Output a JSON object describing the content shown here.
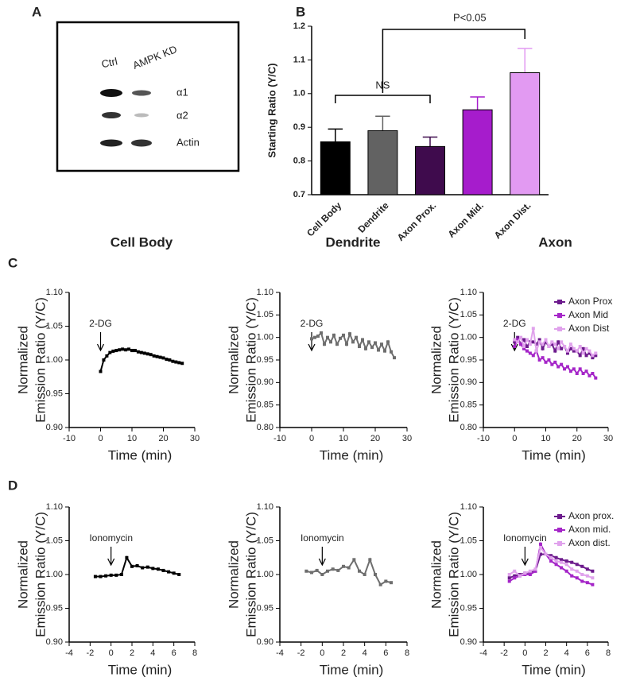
{
  "blot": {
    "panel": "A",
    "lanes": [
      "Ctrl",
      "AMPK KD"
    ],
    "bands": [
      "α1",
      "α2",
      "Actin"
    ]
  },
  "chart_data": [
    {
      "type": "bar",
      "panel": "B",
      "ylabel": "Starting Ratio (Y/C)",
      "categories": [
        "Cell Body",
        "Dendrite",
        "Axon Prox.",
        "Axon Mid.",
        "Axon Dist."
      ],
      "values": [
        0.857,
        0.89,
        0.843,
        0.952,
        1.062
      ],
      "errors": [
        0.038,
        0.043,
        0.028,
        0.038,
        0.072
      ],
      "colors": [
        "#000000",
        "#626262",
        "#3f0b4d",
        "#a61ccc",
        "#e29af2"
      ],
      "ylim": [
        0.7,
        1.2
      ],
      "yticks": [
        0.7,
        0.8,
        0.9,
        {
          "value": 1,
          "label": "1.0"
        },
        1.1,
        1.2
      ],
      "annotations": [
        "NS",
        "P<0.05"
      ]
    },
    {
      "type": "line",
      "panel": "C",
      "title": "Cell Body",
      "ylabel": [
        "Normalized",
        "Emission Ratio (Y/C)"
      ],
      "xlabel": "Time (min)",
      "annotation": {
        "text": "2-DG",
        "x": 0
      },
      "xlim": [
        -10,
        30
      ],
      "xticks": [
        -10,
        0,
        10,
        20,
        30
      ],
      "ylim": [
        0.9,
        1.1
      ],
      "yticks": [
        {
          "value": 0.9,
          "label": "0.90"
        },
        0.95,
        {
          "value": 1,
          "label": "1.00"
        },
        1.05,
        {
          "value": 1.1,
          "label": "1.10"
        }
      ],
      "x": [
        0,
        1,
        2,
        3,
        4,
        5,
        6,
        7,
        8,
        9,
        10,
        11,
        12,
        13,
        14,
        15,
        16,
        17,
        18,
        19,
        20,
        21,
        22,
        23,
        24,
        25,
        26
      ],
      "series": [
        {
          "color": "#000000",
          "values": [
            0.983,
            1.0,
            1.006,
            1.011,
            1.013,
            1.014,
            1.015,
            1.016,
            1.015,
            1.016,
            1.014,
            1.014,
            1.012,
            1.011,
            1.01,
            1.009,
            1.008,
            1.006,
            1.005,
            1.004,
            1.003,
            1.001,
            1.0,
            0.998,
            0.997,
            0.996,
            0.995
          ]
        }
      ]
    },
    {
      "type": "line",
      "title": "Dendrite",
      "ylabel": [
        "Normalized",
        "Emission Ratio (Y/C)"
      ],
      "xlabel": "Time (min)",
      "annotation": {
        "text": "2-DG",
        "x": 0
      },
      "xlim": [
        -10,
        30
      ],
      "xticks": [
        -10,
        0,
        10,
        20,
        30
      ],
      "ylim": [
        0.8,
        1.1
      ],
      "yticks": [
        {
          "value": 0.8,
          "label": "0.80"
        },
        0.85,
        {
          "value": 0.9,
          "label": "0.90"
        },
        0.95,
        {
          "value": 1,
          "label": "1.00"
        },
        1.05,
        {
          "value": 1.1,
          "label": "1.10"
        }
      ],
      "x": [
        0,
        1,
        2,
        3,
        4,
        5,
        6,
        7,
        8,
        9,
        10,
        11,
        12,
        13,
        14,
        15,
        16,
        17,
        18,
        19,
        20,
        21,
        22,
        23,
        24,
        25,
        26
      ],
      "series": [
        {
          "color": "#6e6e6e",
          "values": [
            0.997,
            1.0,
            1.003,
            1.01,
            0.985,
            1.0,
            0.99,
            1.005,
            0.985,
            0.998,
            1.005,
            0.985,
            1.008,
            0.99,
            1.0,
            0.98,
            0.995,
            0.975,
            0.99,
            0.978,
            0.988,
            0.972,
            0.985,
            0.97,
            0.99,
            0.968,
            0.955
          ]
        }
      ]
    },
    {
      "type": "line",
      "title": "Axon",
      "ylabel": [
        "Normalized",
        "Emission Ratio (Y/C)"
      ],
      "xlabel": "Time (min)",
      "annotation": {
        "text": "2-DG",
        "x": 0
      },
      "legend": "upper right",
      "xlim": [
        -10,
        30
      ],
      "xticks": [
        -10,
        0,
        10,
        20,
        30
      ],
      "ylim": [
        0.8,
        1.1
      ],
      "yticks": [
        {
          "value": 0.8,
          "label": "0.80"
        },
        0.85,
        {
          "value": 0.9,
          "label": "0.90"
        },
        0.95,
        {
          "value": 1,
          "label": "1.00"
        },
        1.05,
        {
          "value": 1.1,
          "label": "1.10"
        }
      ],
      "x": [
        0,
        1,
        2,
        3,
        4,
        5,
        6,
        7,
        8,
        9,
        10,
        11,
        12,
        13,
        14,
        15,
        16,
        17,
        18,
        19,
        20,
        21,
        22,
        23,
        24,
        25,
        26
      ],
      "series": [
        {
          "name": "Axon Prox",
          "color": "#6c1a8c",
          "values": [
            0.99,
            1.0,
            0.985,
            0.995,
            0.98,
            0.99,
            0.99,
            0.985,
            0.995,
            0.975,
            0.99,
            0.98,
            0.985,
            0.97,
            0.99,
            0.975,
            0.98,
            0.965,
            0.975,
            0.97,
            0.97,
            0.96,
            0.975,
            0.96,
            0.965,
            0.955,
            0.96
          ]
        },
        {
          "name": "Axon Mid",
          "color": "#a526c8",
          "values": [
            0.98,
            0.995,
            0.985,
            0.975,
            0.97,
            0.965,
            0.96,
            0.97,
            0.95,
            0.955,
            0.945,
            0.95,
            0.94,
            0.945,
            0.935,
            0.94,
            0.93,
            0.935,
            0.925,
            0.93,
            0.92,
            0.93,
            0.92,
            0.925,
            0.915,
            0.92,
            0.91
          ]
        },
        {
          "name": "Axon Dist",
          "color": "#e0a2ec",
          "values": [
            0.995,
            0.99,
            1.0,
            0.98,
            0.995,
            0.985,
            1.02,
            0.97,
            0.99,
            0.985,
            0.995,
            0.98,
            0.99,
            0.985,
            0.975,
            0.99,
            0.98,
            0.97,
            0.985,
            0.975,
            0.97,
            0.98,
            0.965,
            0.975,
            0.97,
            0.96,
            0.965
          ]
        }
      ]
    },
    {
      "type": "line",
      "panel": "D",
      "ylabel": [
        "Normalized",
        "Emission Ratio (Y/C)"
      ],
      "xlabel": "Time (min)",
      "annotation": {
        "text": "Ionomycin",
        "x": 0
      },
      "xlim": [
        -4,
        8
      ],
      "xticks": [
        -4,
        -2,
        0,
        2,
        4,
        6,
        8
      ],
      "ylim": [
        0.9,
        1.1
      ],
      "yticks": [
        {
          "value": 0.9,
          "label": "0.90"
        },
        0.95,
        {
          "value": 1,
          "label": "1.00"
        },
        1.05,
        {
          "value": 1.1,
          "label": "1.10"
        }
      ],
      "x": [
        -1.5,
        -1,
        -0.5,
        0,
        0.5,
        1,
        1.5,
        2,
        2.5,
        3,
        3.5,
        4,
        4.5,
        5,
        5.5,
        6,
        6.5
      ],
      "series": [
        {
          "color": "#000000",
          "values": [
            0.997,
            0.997,
            0.998,
            0.999,
            0.999,
            1.0,
            1.025,
            1.012,
            1.013,
            1.01,
            1.011,
            1.009,
            1.008,
            1.006,
            1.004,
            1.002,
            1.0
          ]
        }
      ]
    },
    {
      "type": "line",
      "ylabel": [
        "Normalized",
        "Emission Ratio (Y/C)"
      ],
      "xlabel": "Time (min)",
      "annotation": {
        "text": "Ionomycin",
        "x": 0
      },
      "xlim": [
        -4,
        8
      ],
      "xticks": [
        -4,
        -2,
        0,
        2,
        4,
        6,
        8
      ],
      "ylim": [
        0.9,
        1.1
      ],
      "yticks": [
        {
          "value": 0.9,
          "label": "0.90"
        },
        0.95,
        {
          "value": 1,
          "label": "1.00"
        },
        1.05,
        {
          "value": 1.1,
          "label": "1.10"
        }
      ],
      "x": [
        -1.5,
        -1,
        -0.5,
        0,
        0.5,
        1,
        1.5,
        2,
        2.5,
        3,
        3.5,
        4,
        4.5,
        5,
        5.5,
        6,
        6.5
      ],
      "series": [
        {
          "color": "#6e6e6e",
          "values": [
            1.005,
            1.003,
            1.006,
            1.0,
            1.005,
            1.008,
            1.006,
            1.012,
            1.01,
            1.022,
            1.005,
            1.0,
            1.022,
            1.0,
            0.985,
            0.99,
            0.988
          ]
        }
      ]
    },
    {
      "type": "line",
      "ylabel": [
        "Normalized",
        "Emission Ratio (Y/C)"
      ],
      "xlabel": "Time (min)",
      "annotation": {
        "text": "Ionomycin",
        "x": 0
      },
      "legend": "upper right",
      "xlim": [
        -4,
        8
      ],
      "xticks": [
        -4,
        -2,
        0,
        2,
        4,
        6,
        8
      ],
      "ylim": [
        0.9,
        1.1
      ],
      "yticks": [
        {
          "value": 0.9,
          "label": "0.90"
        },
        0.95,
        {
          "value": 1,
          "label": "1.00"
        },
        1.05,
        {
          "value": 1.1,
          "label": "1.10"
        }
      ],
      "x": [
        -1.5,
        -1,
        -0.5,
        0,
        0.5,
        1,
        1.5,
        2,
        2.5,
        3,
        3.5,
        4,
        4.5,
        5,
        5.5,
        6,
        6.5
      ],
      "series": [
        {
          "name": "Axon prox.",
          "color": "#6c1a8c",
          "values": [
            0.995,
            0.998,
            1.0,
            1.002,
            1.003,
            1.005,
            1.03,
            1.03,
            1.028,
            1.025,
            1.022,
            1.02,
            1.018,
            1.015,
            1.012,
            1.008,
            1.005
          ]
        },
        {
          "name": "Axon mid.",
          "color": "#a526c8",
          "values": [
            0.99,
            0.995,
            0.998,
            1.0,
            1.0,
            1.005,
            1.045,
            1.03,
            1.02,
            1.015,
            1.01,
            1.005,
            0.998,
            0.995,
            0.99,
            0.988,
            0.985
          ]
        },
        {
          "name": "Axon dist.",
          "color": "#e0a2ec",
          "values": [
            1.0,
            1.005,
            0.998,
            1.002,
            1.005,
            1.008,
            1.04,
            1.03,
            1.025,
            1.02,
            1.018,
            1.015,
            1.008,
            1.005,
            1.0,
            0.998,
            0.995
          ]
        }
      ]
    }
  ]
}
